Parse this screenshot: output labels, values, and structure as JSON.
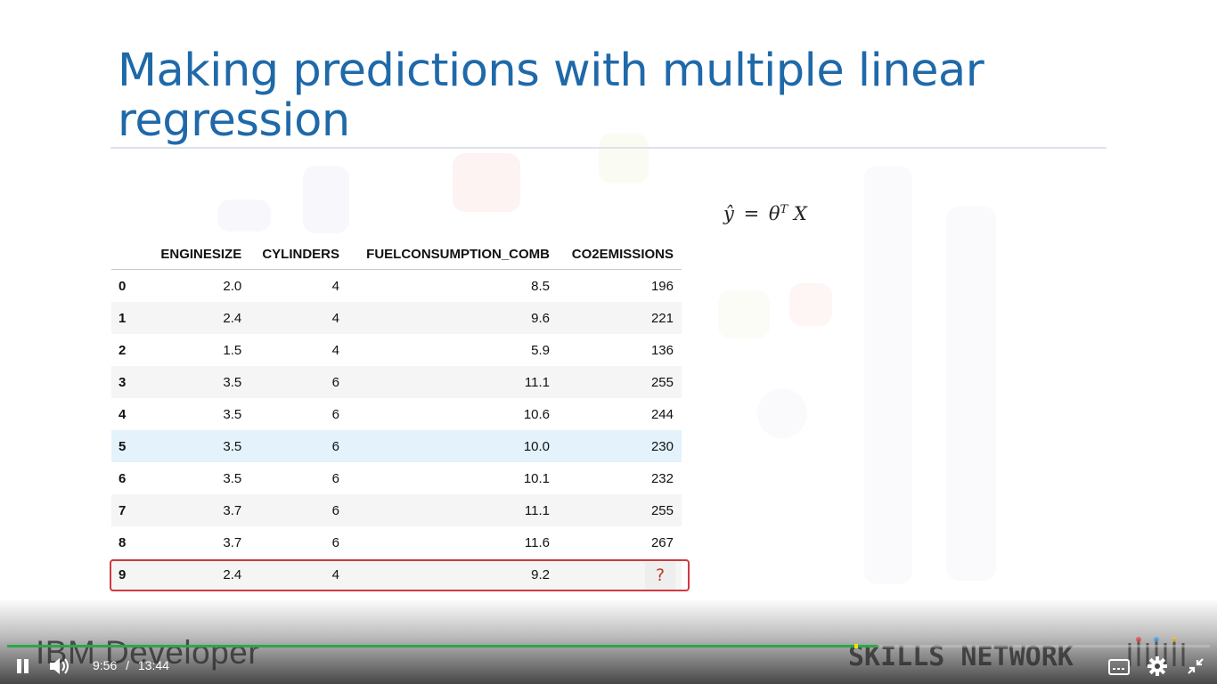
{
  "slide": {
    "title": "Making predictions with multiple linear regression",
    "formula": {
      "lhs": "ŷ",
      "eq": "=",
      "theta": "θ",
      "superscript": "T",
      "var": "X"
    }
  },
  "table": {
    "headers": [
      "",
      "ENGINESIZE",
      "CYLINDERS",
      "FUELCONSUMPTION_COMB",
      "CO2EMISSIONS"
    ],
    "rows": [
      [
        "0",
        "2.0",
        "4",
        "8.5",
        "196"
      ],
      [
        "1",
        "2.4",
        "4",
        "9.6",
        "221"
      ],
      [
        "2",
        "1.5",
        "4",
        "5.9",
        "136"
      ],
      [
        "3",
        "3.5",
        "6",
        "11.1",
        "255"
      ],
      [
        "4",
        "3.5",
        "6",
        "10.6",
        "244"
      ],
      [
        "5",
        "3.5",
        "6",
        "10.0",
        "230"
      ],
      [
        "6",
        "3.5",
        "6",
        "10.1",
        "232"
      ],
      [
        "7",
        "3.7",
        "6",
        "11.1",
        "255"
      ],
      [
        "8",
        "3.7",
        "6",
        "11.6",
        "267"
      ],
      [
        "9",
        "2.4",
        "4",
        "9.2",
        ""
      ]
    ],
    "hover_row_index": 5,
    "highlighted_row_index": 9,
    "unknown_value": "?",
    "highlight_color": "#d0393e"
  },
  "player": {
    "current_time": "9:56",
    "separator": "/",
    "duration": "13:44",
    "progress_fraction": 0.7235,
    "buffered_marker_fraction": 0.7044,
    "progress_color": "#2aa84a",
    "icons": {
      "play_pause": "pause-icon",
      "volume": "volume-icon",
      "captions": "captions-icon",
      "settings": "gear-icon",
      "fullscreen": "exit-fullscreen-icon"
    }
  },
  "watermarks": {
    "left": "IBM Developer",
    "right": "SKILLS NETWORK"
  },
  "colors": {
    "title": "#1f69a9",
    "accent": "#2aa84a"
  }
}
